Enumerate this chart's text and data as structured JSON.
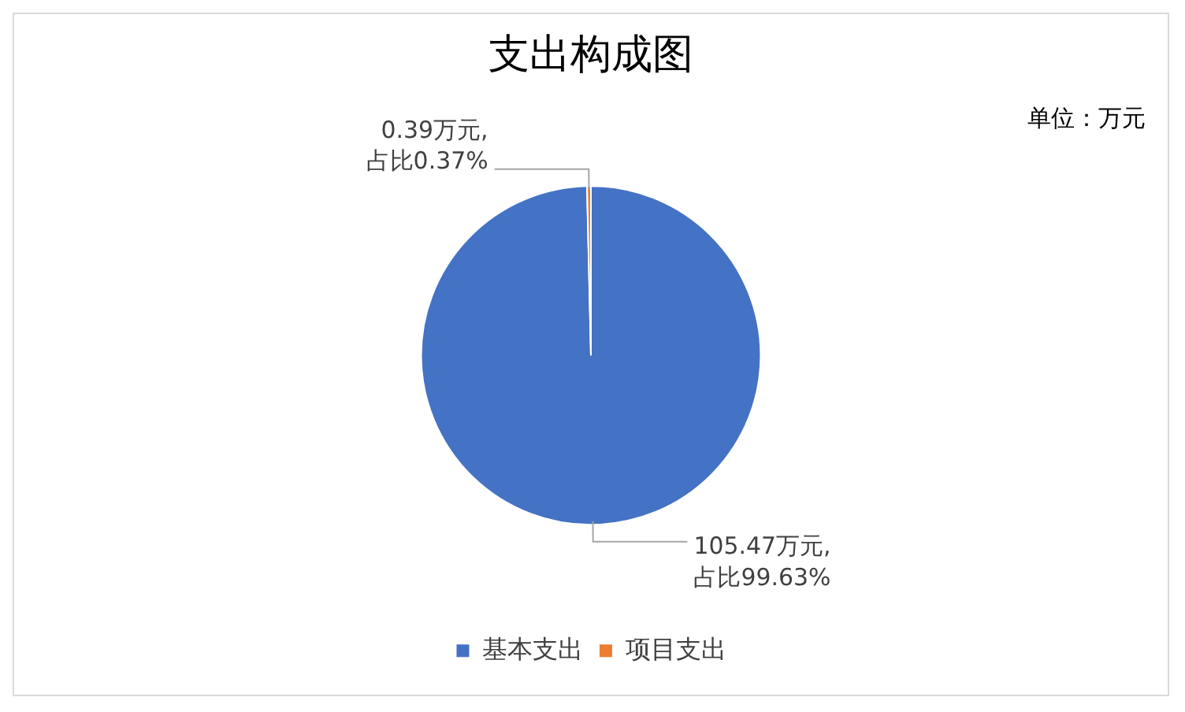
{
  "chart_data": {
    "type": "pie",
    "title": "支出构成图",
    "categories": [
      "基本支出",
      "项目支出"
    ],
    "values": [
      105.47,
      0.39
    ],
    "colors": [
      "#4472c4",
      "#ed7d31"
    ],
    "value_labels": [
      "105.47万元, 占比99.63%",
      "0.39万元, 占比0.37%"
    ],
    "annotations": [
      "单位：万元"
    ],
    "legend": "bottom"
  }
}
